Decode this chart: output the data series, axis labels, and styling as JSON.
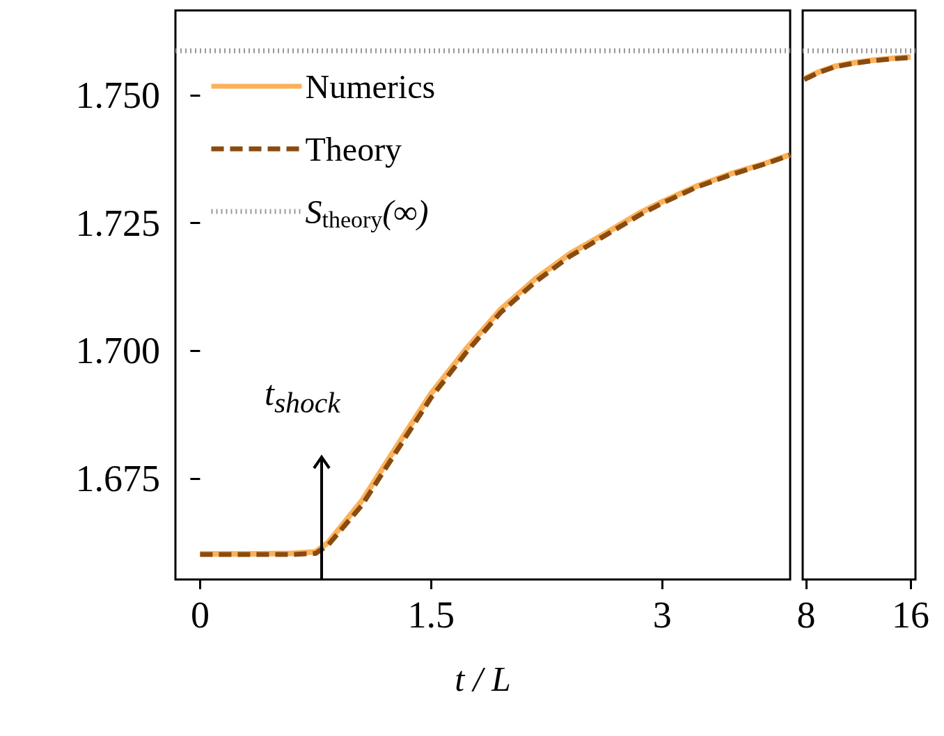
{
  "chart_data": [
    {
      "type": "line",
      "xlabel": "t / L",
      "x": [
        0,
        0.3,
        0.6,
        0.75,
        0.83,
        1.05,
        1.28,
        1.5,
        1.73,
        1.95,
        2.18,
        2.4,
        2.63,
        2.86,
        3.0,
        3.22,
        3.44,
        3.67,
        3.83
      ],
      "series": [
        {
          "name": "Numerics",
          "color": "#fbb15a",
          "line_style": "solid",
          "values": [
            1.6603,
            1.6603,
            1.6604,
            1.6607,
            1.6625,
            1.6707,
            1.6815,
            1.6917,
            1.7005,
            1.7081,
            1.7142,
            1.719,
            1.723,
            1.7271,
            1.7292,
            1.7322,
            1.7346,
            1.7367,
            1.7384
          ]
        },
        {
          "name": "Theory",
          "color": "#8a4b0f",
          "line_style": "dashed",
          "values": [
            1.6602,
            1.6602,
            1.6602,
            1.6604,
            1.662,
            1.6698,
            1.6806,
            1.6909,
            1.6998,
            1.7075,
            1.7136,
            1.7185,
            1.7226,
            1.7267,
            1.7289,
            1.732,
            1.7344,
            1.7366,
            1.7383
          ]
        }
      ],
      "ref_lines": [
        {
          "axis": "y",
          "value": 1.7587,
          "label": "S$_{theory}$(∞)",
          "color": "#999999",
          "line_style": "dotted"
        }
      ],
      "annotations": [
        "t$_{shock}$"
      ],
      "xlim": [
        -0.16,
        3.83
      ],
      "ylim": [
        1.6553,
        1.7666
      ],
      "xticks": [
        0,
        1.5,
        3
      ],
      "yticks": [
        {
          "value": 1.675,
          "label": "1.675"
        },
        {
          "value": 1.7,
          "label": "1.700"
        },
        {
          "value": 1.725,
          "label": "1.725"
        },
        {
          "value": 1.75,
          "label": "1.750"
        }
      ],
      "grid": false,
      "legend": "top left",
      "marker": "none"
    },
    {
      "type": "line",
      "x": [
        7.85,
        9,
        10.24,
        11.5,
        12.9,
        14.5,
        16
      ],
      "series": [
        {
          "color": "#fbb15a",
          "line_style": "solid",
          "values": [
            1.7532,
            1.7546,
            1.7557,
            1.7563,
            1.7568,
            1.7572,
            1.7575
          ]
        },
        {
          "color": "#8a4b0f",
          "line_style": "dashed",
          "values": [
            1.7531,
            1.7545,
            1.7556,
            1.7562,
            1.7567,
            1.7571,
            1.7574
          ]
        }
      ],
      "ref_lines": [
        {
          "axis": "y",
          "value": 1.7587,
          "color": "#999999",
          "line_style": "dotted"
        }
      ],
      "xlim": [
        7.73,
        16.37
      ],
      "ylim": [
        1.6553,
        1.7666
      ],
      "xticks": [
        8,
        16
      ],
      "tick_labels": "x",
      "grid": false,
      "marker": "none"
    }
  ]
}
